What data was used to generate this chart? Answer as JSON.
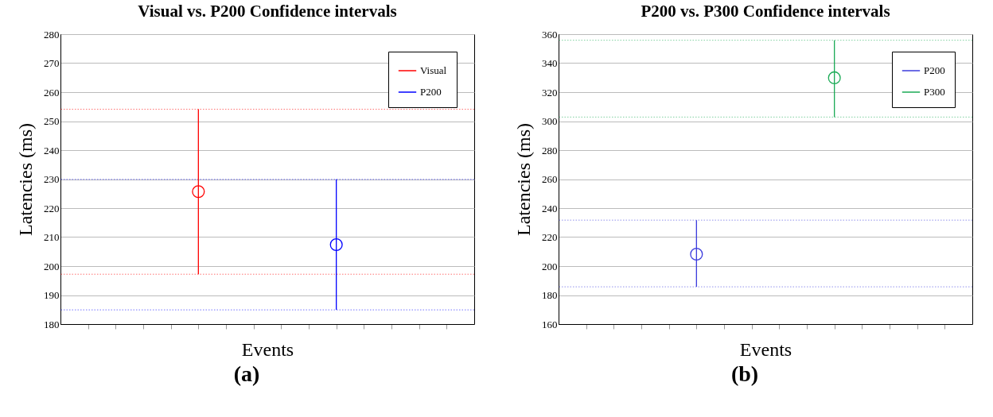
{
  "chart_data": [
    {
      "type": "scatter",
      "title": "Visual vs. P200 Confidence intervals",
      "xlabel": "Events",
      "ylabel": "Latencies (ms)",
      "annotations": [
        "(a)"
      ],
      "categories": [
        null,
        null,
        null,
        null,
        null,
        null,
        null,
        null,
        null,
        null,
        null,
        null,
        null,
        null
      ],
      "series": [
        {
          "name": "Visual",
          "color": "#ff0000",
          "values": [
            null,
            null,
            null,
            null,
            225.7,
            null,
            null,
            null,
            null,
            null,
            null,
            null,
            null,
            null
          ],
          "errors": [
            null,
            null,
            null,
            null,
            [
              197.2,
              254.1
            ],
            null,
            null,
            null,
            null,
            null,
            null,
            null,
            null,
            null
          ]
        },
        {
          "name": "P200",
          "color": "#0000ff",
          "values": [
            null,
            null,
            null,
            null,
            null,
            null,
            null,
            null,
            null,
            207.4,
            null,
            null,
            null,
            null
          ],
          "errors": [
            null,
            null,
            null,
            null,
            null,
            null,
            null,
            null,
            null,
            [
              184.9,
              229.9
            ],
            null,
            null,
            null,
            null
          ]
        }
      ],
      "ylim": [
        180,
        280
      ],
      "yticks": [
        180,
        190,
        200,
        210,
        220,
        230,
        240,
        250,
        260,
        270,
        280
      ],
      "ref_lines": [
        {
          "axis": "y",
          "value": 254.1,
          "color": "#ff0000",
          "line_style": "dotted"
        },
        {
          "axis": "y",
          "value": 197.2,
          "color": "#ff0000",
          "line_style": "dotted"
        },
        {
          "axis": "y",
          "value": 229.9,
          "color": "#0000ff",
          "line_style": "dotted"
        },
        {
          "axis": "y",
          "value": 184.9,
          "color": "#0000ff",
          "line_style": "dotted"
        }
      ],
      "tick_labels": "y",
      "grid": "y",
      "legend": "top right",
      "marker": "circle"
    },
    {
      "type": "scatter",
      "title": "P200 vs. P300 Confidence intervals",
      "xlabel": "Events",
      "ylabel": "Latencies (ms)",
      "annotations": [
        "(b)"
      ],
      "categories": [
        null,
        null,
        null,
        null,
        null,
        null,
        null,
        null,
        null,
        null,
        null,
        null,
        null,
        null
      ],
      "series": [
        {
          "name": "P200",
          "color": "#3b3bdd",
          "values": [
            null,
            null,
            null,
            null,
            208.2,
            null,
            null,
            null,
            null,
            null,
            null,
            null,
            null,
            null
          ],
          "errors": [
            null,
            null,
            null,
            null,
            [
              185.7,
              231.7
            ],
            null,
            null,
            null,
            null,
            null,
            null,
            null,
            null,
            null
          ]
        },
        {
          "name": "P300",
          "color": "#1aaa55",
          "values": [
            null,
            null,
            null,
            null,
            null,
            null,
            null,
            null,
            null,
            329.9,
            null,
            null,
            null,
            null
          ],
          "errors": [
            null,
            null,
            null,
            null,
            null,
            null,
            null,
            null,
            null,
            [
              302.8,
              355.8
            ],
            null,
            null,
            null,
            null
          ]
        }
      ],
      "ylim": [
        160,
        360
      ],
      "yticks": [
        160,
        180,
        200,
        220,
        240,
        260,
        280,
        300,
        320,
        340,
        360
      ],
      "ref_lines": [
        {
          "axis": "y",
          "value": 355.8,
          "color": "#1aaa55",
          "line_style": "dotted"
        },
        {
          "axis": "y",
          "value": 302.8,
          "color": "#1aaa55",
          "line_style": "dotted"
        },
        {
          "axis": "y",
          "value": 231.7,
          "color": "#3b3bdd",
          "line_style": "dotted"
        },
        {
          "axis": "y",
          "value": 185.7,
          "color": "#3b3bdd",
          "line_style": "dotted"
        }
      ],
      "tick_labels": "y",
      "grid": "y",
      "legend": "top right",
      "marker": "circle"
    }
  ]
}
